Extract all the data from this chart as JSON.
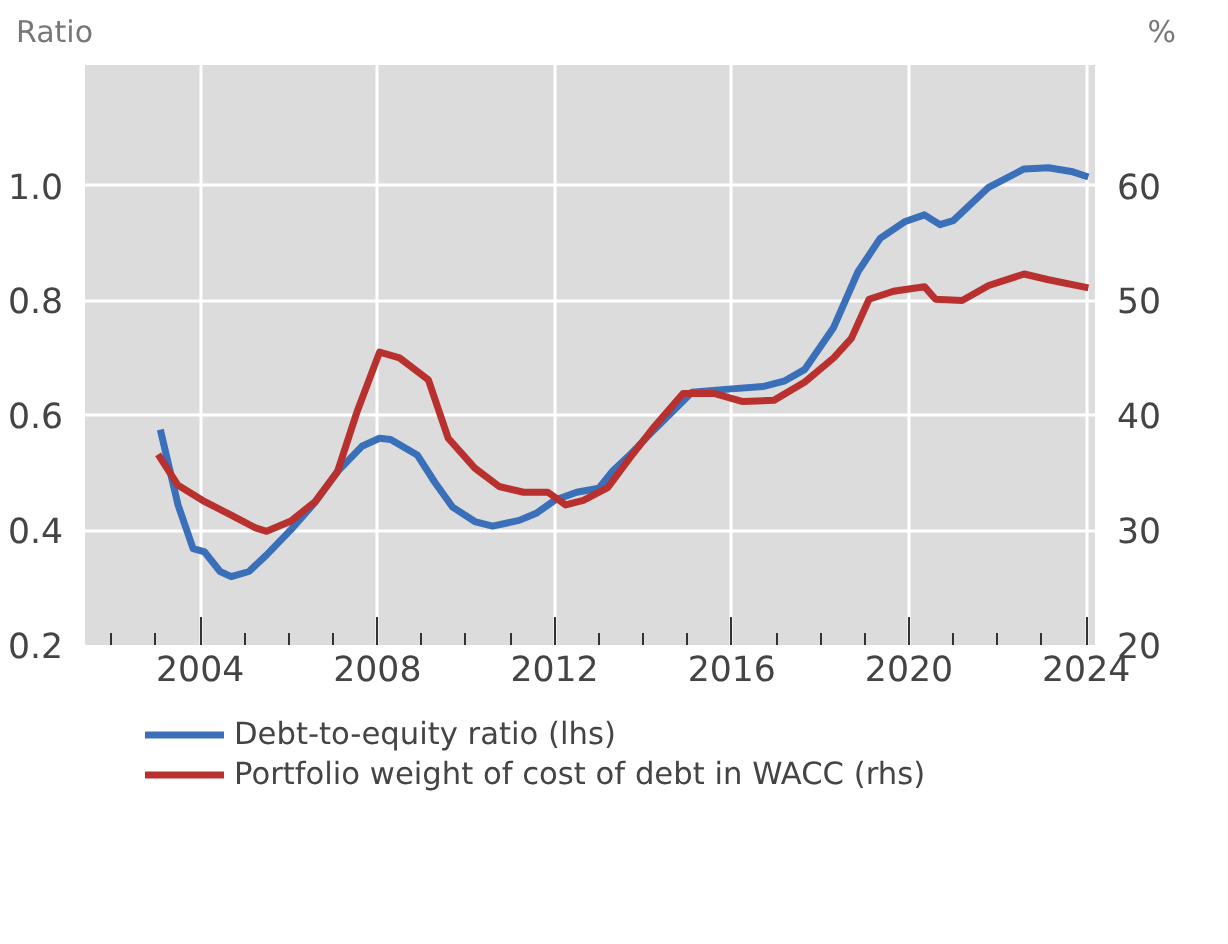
{
  "chart_data": {
    "type": "line",
    "ylabel": "Ratio",
    "y2label": "%",
    "xlim": [
      2001.4,
      2024.2
    ],
    "xticks": [
      2004,
      2008,
      2012,
      2016,
      2020,
      2024
    ],
    "ylim": [
      0.2,
      1.21
    ],
    "yticks": [
      {
        "value": 0.2,
        "label": "0.2"
      },
      {
        "value": 0.4,
        "label": "0.4"
      },
      {
        "value": 0.6,
        "label": "0.6"
      },
      {
        "value": 0.8,
        "label": "0.8"
      },
      {
        "value": 1.0,
        "label": "1.0"
      }
    ],
    "y2lim": [
      20,
      70.5
    ],
    "y2ticks": [
      20,
      30,
      40,
      50,
      60
    ],
    "grid": true,
    "legend": "bottom",
    "line_style": "solid",
    "marker": "none",
    "series": [
      {
        "name": "Debt-to-equity ratio (lhs)",
        "color": "#3a6fba",
        "x": [
          2003.1,
          2003.5,
          2003.84,
          2004.1,
          2004.45,
          2004.7,
          2005.1,
          2005.5,
          2006.05,
          2006.6,
          2007.1,
          2007.65,
          2008.05,
          2008.3,
          2008.9,
          2009.3,
          2009.7,
          2010.2,
          2010.6,
          2011.2,
          2011.6,
          2012.0,
          2012.5,
          2013.0,
          2013.3,
          2013.7,
          2014.25,
          2015.1,
          2016.0,
          2016.7,
          2017.2,
          2017.65,
          2018.3,
          2018.85,
          2019.35,
          2019.9,
          2020.35,
          2020.7,
          2021.0,
          2021.8,
          2022.6,
          2023.15,
          2023.7,
          2024.05
        ],
        "values": [
          0.575,
          0.444,
          0.368,
          0.362,
          0.328,
          0.319,
          0.328,
          0.357,
          0.401,
          0.449,
          0.502,
          0.546,
          0.56,
          0.558,
          0.531,
          0.483,
          0.44,
          0.415,
          0.407,
          0.417,
          0.43,
          0.452,
          0.466,
          0.473,
          0.502,
          0.531,
          0.575,
          0.64,
          0.646,
          0.65,
          0.66,
          0.68,
          0.753,
          0.85,
          0.908,
          0.937,
          0.949,
          0.932,
          0.939,
          0.997,
          1.029,
          1.031,
          1.024,
          1.015
        ]
      },
      {
        "name": "Portfolio weight of cost of debt in WACC (rhs)",
        "color": "#b8312f",
        "axis": "y2",
        "x": [
          2003.05,
          2003.5,
          2004.05,
          2004.7,
          2005.25,
          2005.5,
          2006.05,
          2006.6,
          2007.1,
          2007.55,
          2008.05,
          2008.5,
          2009.15,
          2009.6,
          2010.2,
          2010.75,
          2011.3,
          2011.85,
          2012.25,
          2012.65,
          2013.2,
          2013.7,
          2014.25,
          2014.9,
          2015.6,
          2016.25,
          2016.95,
          2017.65,
          2018.3,
          2018.7,
          2019.1,
          2019.65,
          2020.35,
          2020.6,
          2021.2,
          2021.8,
          2022.6,
          2023.15,
          2024.05
        ],
        "values": [
          36.6,
          33.9,
          32.6,
          31.3,
          30.2,
          29.9,
          30.8,
          32.5,
          35.1,
          40.4,
          45.5,
          45.0,
          43.1,
          38.0,
          35.4,
          33.8,
          33.3,
          33.3,
          32.2,
          32.6,
          33.7,
          36.3,
          39.0,
          41.9,
          41.9,
          41.2,
          41.3,
          42.9,
          45.0,
          46.7,
          50.1,
          50.8,
          51.2,
          50.1,
          50.0,
          51.3,
          52.3,
          51.8,
          51.1
        ]
      }
    ]
  }
}
